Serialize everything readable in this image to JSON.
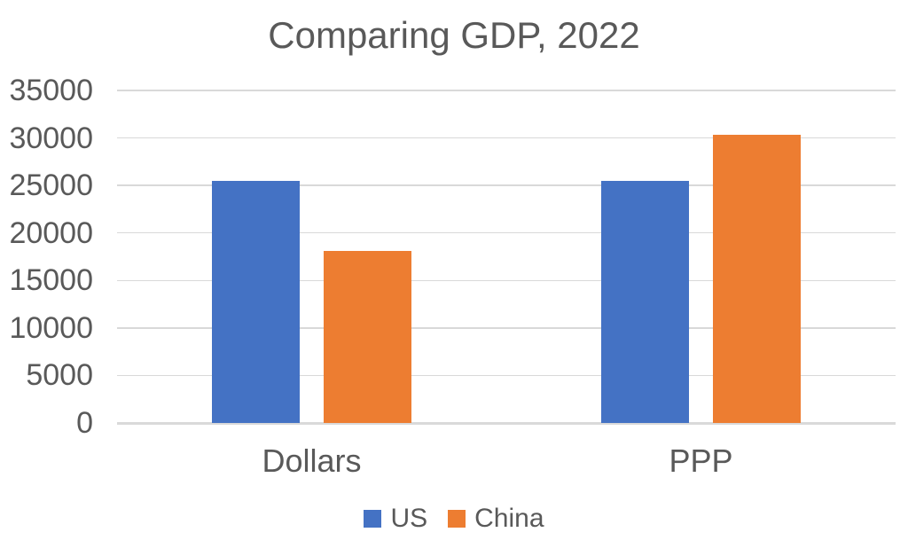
{
  "colors": {
    "background": "#ffffff",
    "text": "#595959",
    "gridline": "#d9d9d9",
    "axis_line": "#d9d9d9",
    "us_series": "#4472c4",
    "china_series": "#ed7d31"
  },
  "chart_data": {
    "type": "bar",
    "title": "Comparing GDP, 2022",
    "categories": [
      "Dollars",
      "PPP"
    ],
    "series": [
      {
        "name": "US",
        "color": "#4472c4",
        "values": [
          25460,
          25460
        ]
      },
      {
        "name": "China",
        "color": "#ed7d31",
        "values": [
          18100,
          30300
        ]
      }
    ],
    "xlabel": "",
    "ylabel": "",
    "ylim": [
      0,
      35000
    ],
    "ytick_step": 5000,
    "ytick_labels": [
      "35000",
      "30000",
      "25000",
      "20000",
      "15000",
      "10000",
      "5000",
      "0"
    ],
    "grid": true,
    "legend_position": "bottom"
  }
}
